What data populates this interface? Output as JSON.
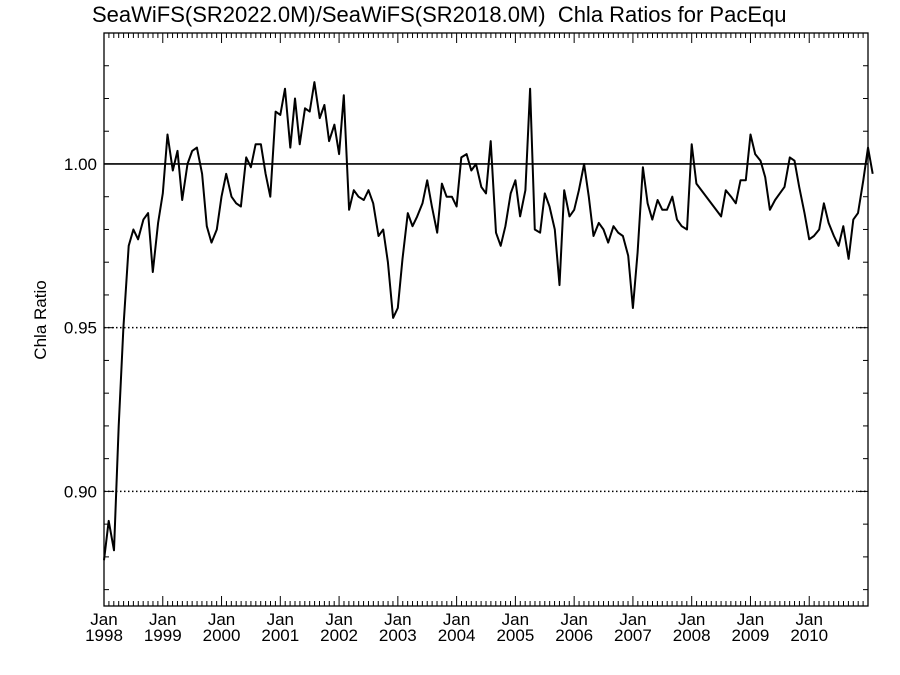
{
  "chart_data": {
    "type": "line",
    "title": "SeaWiFS(SR2022.0M)/SeaWiFS(SR2018.0M)  Chla Ratios for PacEqu",
    "xlabel": "",
    "ylabel": "Chla Ratio",
    "xlim": [
      1998.0,
      2011.0
    ],
    "ylim": [
      0.865,
      1.04
    ],
    "x_ticks": [
      {
        "value": 1998,
        "month": "Jan",
        "year": "1998"
      },
      {
        "value": 1999,
        "month": "Jan",
        "year": "1999"
      },
      {
        "value": 2000,
        "month": "Jan",
        "year": "2000"
      },
      {
        "value": 2001,
        "month": "Jan",
        "year": "2001"
      },
      {
        "value": 2002,
        "month": "Jan",
        "year": "2002"
      },
      {
        "value": 2003,
        "month": "Jan",
        "year": "2003"
      },
      {
        "value": 2004,
        "month": "Jan",
        "year": "2004"
      },
      {
        "value": 2005,
        "month": "Jan",
        "year": "2005"
      },
      {
        "value": 2006,
        "month": "Jan",
        "year": "2006"
      },
      {
        "value": 2007,
        "month": "Jan",
        "year": "2007"
      },
      {
        "value": 2008,
        "month": "Jan",
        "year": "2008"
      },
      {
        "value": 2009,
        "month": "Jan",
        "year": "2009"
      },
      {
        "value": 2010,
        "month": "Jan",
        "year": "2010"
      }
    ],
    "y_ticks": [
      {
        "value": 0.9,
        "label": "0.90"
      },
      {
        "value": 0.95,
        "label": "0.95"
      },
      {
        "value": 1.0,
        "label": "1.00"
      }
    ],
    "reference_lines": [
      {
        "value": 1.0,
        "style": "solid"
      },
      {
        "value": 0.95,
        "style": "dotted"
      },
      {
        "value": 0.9,
        "style": "dotted"
      }
    ],
    "grid": false,
    "series": [
      {
        "points": [
          [
            1998.0,
            0.879
          ],
          [
            1998.08,
            0.891
          ],
          [
            1998.17,
            0.882
          ],
          [
            1998.25,
            0.92
          ],
          [
            1998.33,
            0.95
          ],
          [
            1998.42,
            0.975
          ],
          [
            1998.5,
            0.98
          ],
          [
            1998.58,
            0.977
          ],
          [
            1998.67,
            0.983
          ],
          [
            1998.75,
            0.985
          ],
          [
            1998.83,
            0.967
          ],
          [
            1998.92,
            0.982
          ],
          [
            1999.0,
            0.991
          ],
          [
            1999.08,
            1.009
          ],
          [
            1999.17,
            0.998
          ],
          [
            1999.25,
            1.004
          ],
          [
            1999.33,
            0.989
          ],
          [
            1999.42,
            1.0
          ],
          [
            1999.5,
            1.004
          ],
          [
            1999.58,
            1.005
          ],
          [
            1999.67,
            0.997
          ],
          [
            1999.75,
            0.981
          ],
          [
            1999.83,
            0.976
          ],
          [
            1999.92,
            0.98
          ],
          [
            2000.0,
            0.99
          ],
          [
            2000.08,
            0.997
          ],
          [
            2000.17,
            0.99
          ],
          [
            2000.25,
            0.988
          ],
          [
            2000.33,
            0.987
          ],
          [
            2000.42,
            1.002
          ],
          [
            2000.5,
            0.999
          ],
          [
            2000.58,
            1.006
          ],
          [
            2000.67,
            1.006
          ],
          [
            2000.75,
            0.997
          ],
          [
            2000.83,
            0.99
          ],
          [
            2000.92,
            1.016
          ],
          [
            2001.0,
            1.015
          ],
          [
            2001.08,
            1.023
          ],
          [
            2001.17,
            1.005
          ],
          [
            2001.25,
            1.02
          ],
          [
            2001.33,
            1.006
          ],
          [
            2001.42,
            1.017
          ],
          [
            2001.5,
            1.016
          ],
          [
            2001.58,
            1.025
          ],
          [
            2001.67,
            1.014
          ],
          [
            2001.75,
            1.018
          ],
          [
            2001.83,
            1.007
          ],
          [
            2001.92,
            1.012
          ],
          [
            2002.0,
            1.003
          ],
          [
            2002.08,
            1.021
          ],
          [
            2002.17,
            0.986
          ],
          [
            2002.25,
            0.992
          ],
          [
            2002.33,
            0.99
          ],
          [
            2002.42,
            0.989
          ],
          [
            2002.5,
            0.992
          ],
          [
            2002.58,
            0.988
          ],
          [
            2002.67,
            0.978
          ],
          [
            2002.75,
            0.98
          ],
          [
            2002.83,
            0.97
          ],
          [
            2002.92,
            0.953
          ],
          [
            2003.0,
            0.956
          ],
          [
            2003.08,
            0.971
          ],
          [
            2003.17,
            0.985
          ],
          [
            2003.25,
            0.981
          ],
          [
            2003.33,
            0.984
          ],
          [
            2003.42,
            0.988
          ],
          [
            2003.5,
            0.995
          ],
          [
            2003.58,
            0.987
          ],
          [
            2003.67,
            0.979
          ],
          [
            2003.75,
            0.994
          ],
          [
            2003.83,
            0.99
          ],
          [
            2003.92,
            0.99
          ],
          [
            2004.0,
            0.987
          ],
          [
            2004.08,
            1.002
          ],
          [
            2004.17,
            1.003
          ],
          [
            2004.25,
            0.998
          ],
          [
            2004.33,
            1.0
          ],
          [
            2004.42,
            0.993
          ],
          [
            2004.5,
            0.991
          ],
          [
            2004.58,
            1.007
          ],
          [
            2004.67,
            0.979
          ],
          [
            2004.75,
            0.975
          ],
          [
            2004.83,
            0.981
          ],
          [
            2004.92,
            0.991
          ],
          [
            2005.0,
            0.995
          ],
          [
            2005.08,
            0.984
          ],
          [
            2005.17,
            0.992
          ],
          [
            2005.25,
            1.023
          ],
          [
            2005.33,
            0.98
          ],
          [
            2005.42,
            0.979
          ],
          [
            2005.5,
            0.991
          ],
          [
            2005.58,
            0.987
          ],
          [
            2005.67,
            0.98
          ],
          [
            2005.75,
            0.963
          ],
          [
            2005.83,
            0.992
          ],
          [
            2005.92,
            0.984
          ],
          [
            2006.0,
            0.986
          ],
          [
            2006.08,
            0.992
          ],
          [
            2006.17,
            1.0
          ],
          [
            2006.25,
            0.99
          ],
          [
            2006.33,
            0.978
          ],
          [
            2006.42,
            0.982
          ],
          [
            2006.5,
            0.98
          ],
          [
            2006.58,
            0.976
          ],
          [
            2006.67,
            0.981
          ],
          [
            2006.75,
            0.979
          ],
          [
            2006.83,
            0.978
          ],
          [
            2006.92,
            0.972
          ],
          [
            2007.0,
            0.956
          ],
          [
            2007.08,
            0.973
          ],
          [
            2007.17,
            0.999
          ],
          [
            2007.25,
            0.988
          ],
          [
            2007.33,
            0.983
          ],
          [
            2007.42,
            0.989
          ],
          [
            2007.5,
            0.986
          ],
          [
            2007.58,
            0.986
          ],
          [
            2007.67,
            0.99
          ],
          [
            2007.75,
            0.983
          ],
          [
            2007.83,
            0.981
          ],
          [
            2007.92,
            0.98
          ],
          [
            2008.0,
            1.006
          ],
          [
            2008.08,
            0.994
          ],
          [
            2008.5,
            0.984
          ],
          [
            2008.58,
            0.992
          ],
          [
            2008.67,
            0.99
          ],
          [
            2008.75,
            0.988
          ],
          [
            2008.83,
            0.995
          ],
          [
            2008.92,
            0.995
          ],
          [
            2009.0,
            1.009
          ],
          [
            2009.08,
            1.003
          ],
          [
            2009.17,
            1.001
          ],
          [
            2009.25,
            0.996
          ],
          [
            2009.33,
            0.986
          ],
          [
            2009.42,
            0.989
          ],
          [
            2009.5,
            0.991
          ],
          [
            2009.58,
            0.993
          ],
          [
            2009.67,
            1.002
          ],
          [
            2009.75,
            1.001
          ],
          [
            2009.83,
            0.993
          ],
          [
            2009.92,
            0.985
          ],
          [
            2010.0,
            0.977
          ],
          [
            2010.08,
            0.978
          ],
          [
            2010.17,
            0.98
          ],
          [
            2010.25,
            0.988
          ],
          [
            2010.33,
            0.982
          ],
          [
            2010.42,
            0.978
          ],
          [
            2010.5,
            0.975
          ],
          [
            2010.58,
            0.981
          ],
          [
            2010.67,
            0.971
          ],
          [
            2010.75,
            0.983
          ],
          [
            2010.83,
            0.985
          ],
          [
            2010.92,
            0.995
          ],
          [
            2011.0,
            1.005
          ],
          [
            2011.08,
            0.997
          ]
        ]
      }
    ]
  }
}
